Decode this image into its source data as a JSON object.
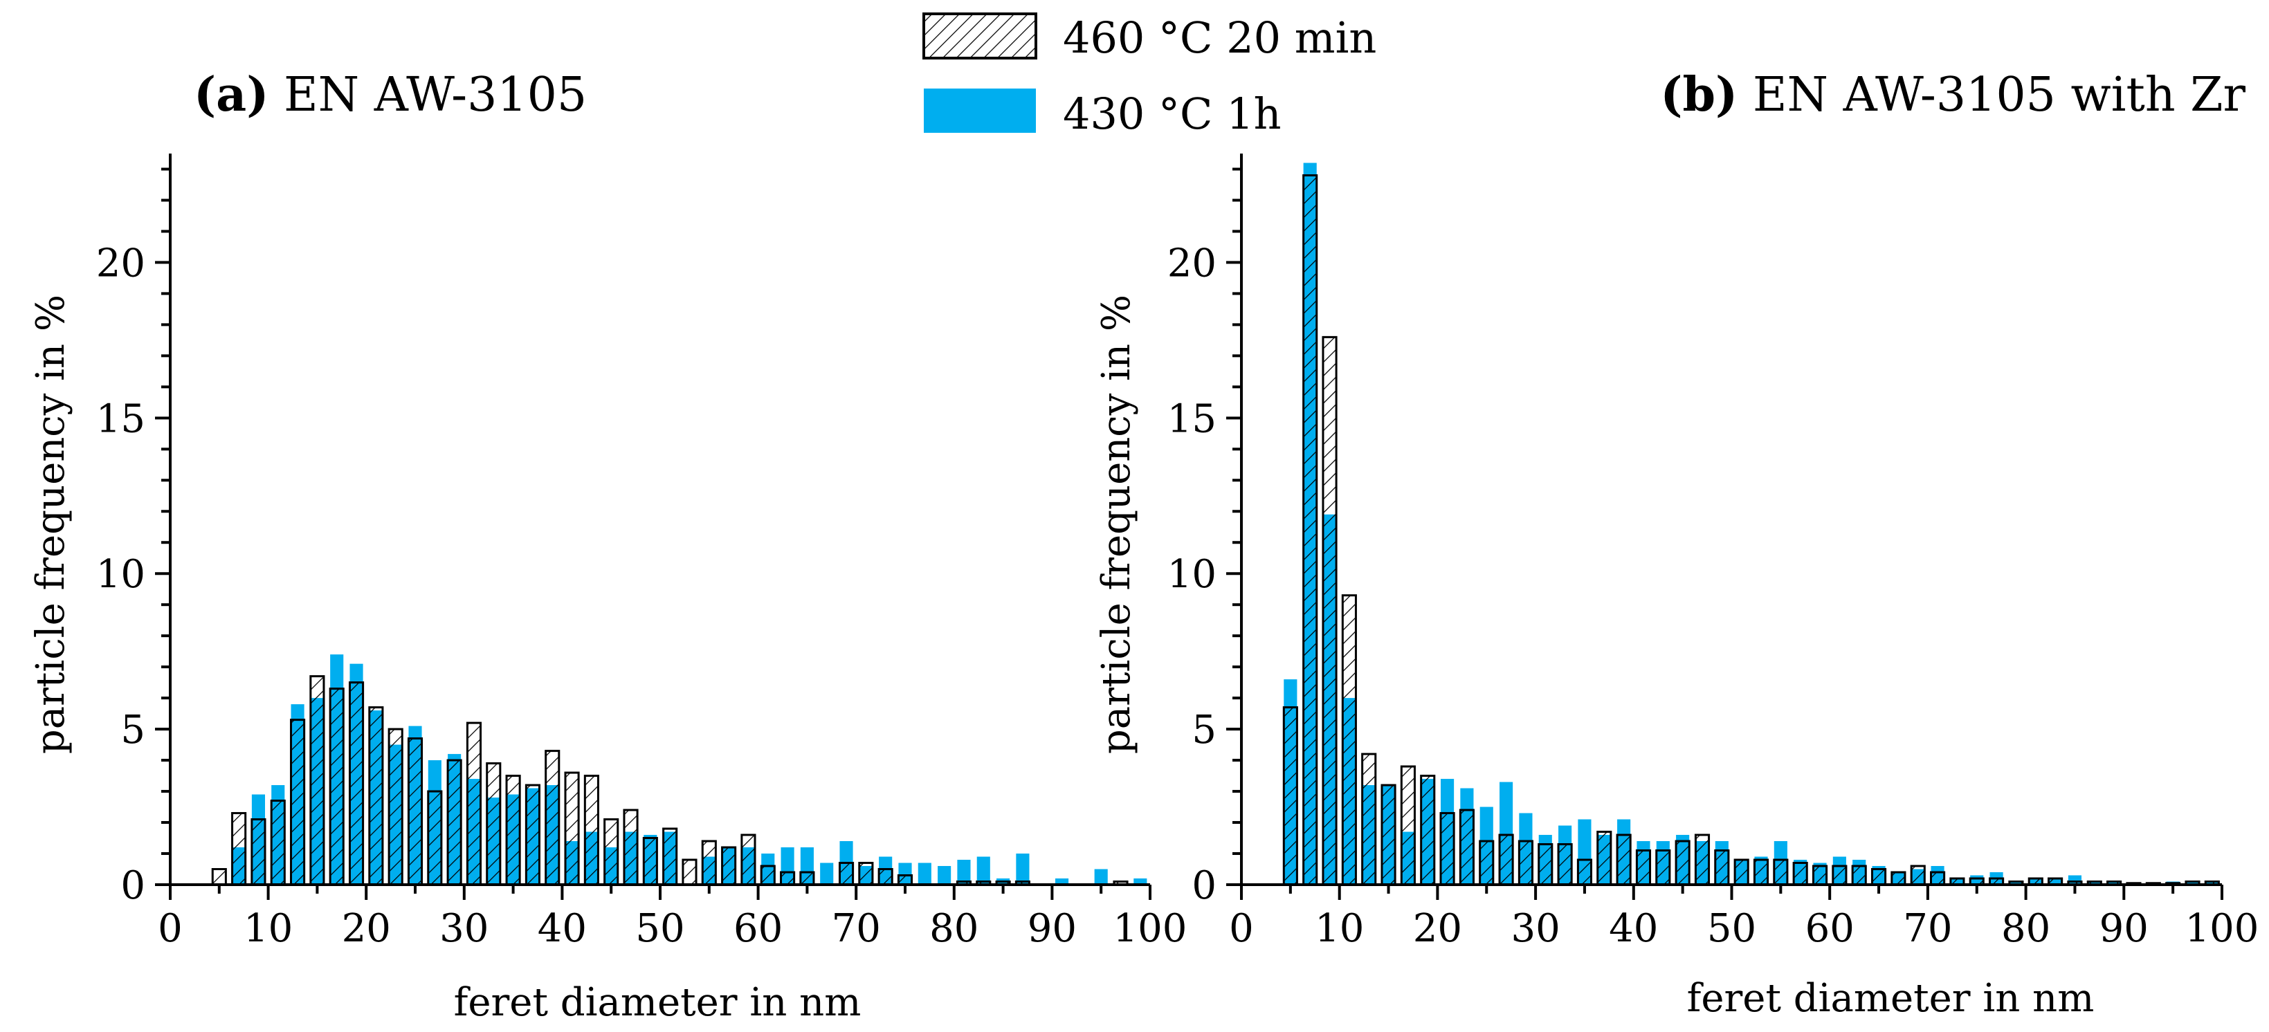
{
  "legend": [
    {
      "label": "460 °C 20 min",
      "style": "hatched"
    },
    {
      "label": "430 °C 1h",
      "style": "solid"
    }
  ],
  "colors": {
    "filled": "#00AEEF",
    "hatch": "#000000",
    "axis": "#000000"
  },
  "chart_data": [
    {
      "type": "bar",
      "panel_label": "(a)",
      "title": "EN AW-3105",
      "xlabel": "feret diameter in nm",
      "ylabel": "particle frequency in %",
      "xlim": [
        0,
        100
      ],
      "ylim": [
        0,
        23.5
      ],
      "xticks": [
        0,
        10,
        20,
        30,
        40,
        50,
        60,
        70,
        80,
        90,
        100
      ],
      "yticks": [
        0,
        5,
        10,
        15,
        20
      ],
      "x": [
        5,
        7,
        9,
        11,
        13,
        15,
        17,
        19,
        21,
        23,
        25,
        27,
        29,
        31,
        33,
        35,
        37,
        39,
        41,
        43,
        45,
        47,
        49,
        51,
        53,
        55,
        57,
        59,
        61,
        63,
        65,
        67,
        69,
        71,
        73,
        75,
        77,
        79,
        81,
        83,
        85,
        87,
        89,
        91,
        93,
        95,
        97,
        99
      ],
      "series": [
        {
          "name": "460 °C 20 min",
          "values": [
            0.5,
            2.3,
            2.1,
            2.7,
            5.3,
            6.7,
            6.3,
            6.5,
            5.7,
            5.0,
            4.7,
            3.0,
            4.0,
            5.2,
            3.9,
            3.5,
            3.2,
            4.3,
            3.6,
            3.5,
            2.1,
            2.4,
            1.5,
            1.8,
            0.8,
            1.4,
            1.2,
            1.6,
            0.6,
            0.4,
            0.4,
            0.0,
            0.7,
            0.7,
            0.5,
            0.3,
            0.0,
            0.0,
            0.1,
            0.1,
            0.1,
            0.1,
            0.0,
            0.0,
            0.0,
            0.0,
            0.1,
            0.0
          ]
        },
        {
          "name": "430 °C 1h",
          "values": [
            0.0,
            1.2,
            2.9,
            3.2,
            5.8,
            6.0,
            7.4,
            7.1,
            5.6,
            4.5,
            5.1,
            4.0,
            4.2,
            3.4,
            2.8,
            2.9,
            3.1,
            3.2,
            1.4,
            1.7,
            1.2,
            1.7,
            1.6,
            1.7,
            0.0,
            0.9,
            1.2,
            1.2,
            1.0,
            1.2,
            1.2,
            0.7,
            1.4,
            0.6,
            0.9,
            0.7,
            0.7,
            0.6,
            0.8,
            0.9,
            0.2,
            1.0,
            0.0,
            0.2,
            0.0,
            0.5,
            0.0,
            0.2
          ]
        }
      ]
    },
    {
      "type": "bar",
      "panel_label": "(b)",
      "title": "EN AW-3105 with Zr",
      "xlabel": "feret diameter in nm",
      "ylabel": "particle frequency in %",
      "xlim": [
        0,
        100
      ],
      "ylim": [
        0,
        23.5
      ],
      "xticks": [
        0,
        10,
        20,
        30,
        40,
        50,
        60,
        70,
        80,
        90,
        100
      ],
      "yticks": [
        0,
        5,
        10,
        15,
        20
      ],
      "x": [
        5,
        7,
        9,
        11,
        13,
        15,
        17,
        19,
        21,
        23,
        25,
        27,
        29,
        31,
        33,
        35,
        37,
        39,
        41,
        43,
        45,
        47,
        49,
        51,
        53,
        55,
        57,
        59,
        61,
        63,
        65,
        67,
        69,
        71,
        73,
        75,
        77,
        79,
        81,
        83,
        85,
        87,
        89,
        91,
        93,
        95,
        97,
        99
      ],
      "series": [
        {
          "name": "460 °C 20 min",
          "values": [
            5.7,
            22.8,
            17.6,
            9.3,
            4.2,
            3.2,
            3.8,
            3.5,
            2.3,
            2.4,
            1.4,
            1.6,
            1.4,
            1.3,
            1.3,
            0.8,
            1.7,
            1.6,
            1.1,
            1.1,
            1.4,
            1.6,
            1.1,
            0.8,
            0.8,
            0.8,
            0.7,
            0.6,
            0.6,
            0.6,
            0.5,
            0.4,
            0.6,
            0.4,
            0.2,
            0.2,
            0.2,
            0.1,
            0.2,
            0.2,
            0.1,
            0.1,
            0.1,
            0.05,
            0.05,
            0.05,
            0.1,
            0.1
          ]
        },
        {
          "name": "430 °C 1h",
          "values": [
            6.6,
            23.2,
            11.9,
            6.0,
            3.2,
            3.2,
            1.7,
            3.4,
            3.4,
            3.1,
            2.5,
            3.3,
            2.3,
            1.6,
            1.9,
            2.1,
            1.6,
            2.1,
            1.4,
            1.4,
            1.6,
            1.4,
            1.4,
            0.8,
            0.9,
            1.4,
            0.8,
            0.7,
            0.9,
            0.8,
            0.6,
            0.4,
            0.5,
            0.6,
            0.2,
            0.3,
            0.4,
            0.1,
            0.2,
            0.2,
            0.3,
            0.1,
            0.1,
            0.05,
            0.05,
            0.1,
            0.1,
            0.1
          ]
        }
      ]
    }
  ]
}
